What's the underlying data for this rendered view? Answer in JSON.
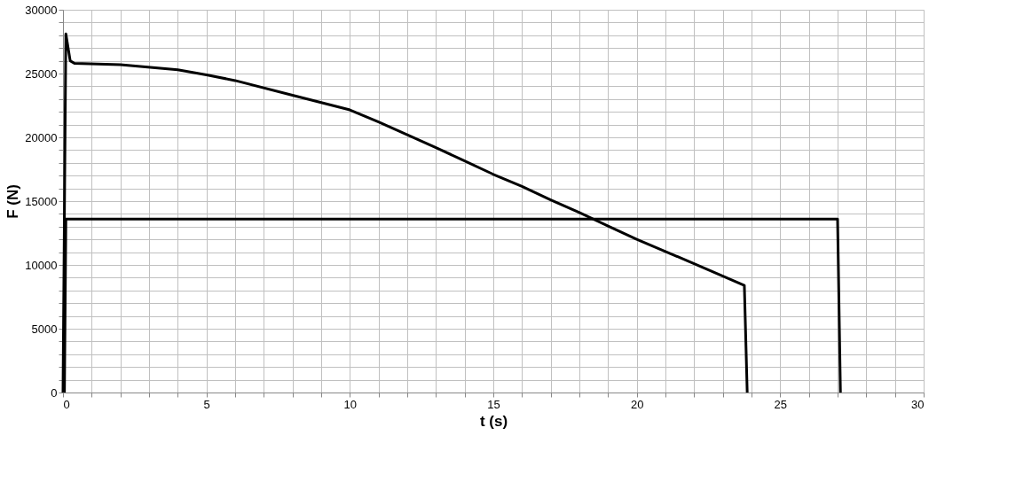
{
  "chart_data": {
    "type": "line",
    "xlabel": "t (s)",
    "ylabel": "F (N)",
    "xlim": [
      0,
      30
    ],
    "ylim": [
      0,
      30000
    ],
    "xticks": [
      0,
      {
        "value": 1,
        "label": null
      },
      {
        "value": 2,
        "label": null
      },
      {
        "value": 3,
        "label": null
      },
      {
        "value": 4,
        "label": null
      },
      5,
      {
        "value": 6,
        "label": null
      },
      {
        "value": 7,
        "label": null
      },
      {
        "value": 8,
        "label": null
      },
      {
        "value": 9,
        "label": null
      },
      10,
      {
        "value": 11,
        "label": null
      },
      {
        "value": 12,
        "label": null
      },
      {
        "value": 13,
        "label": null
      },
      {
        "value": 14,
        "label": null
      },
      15,
      {
        "value": 16,
        "label": null
      },
      {
        "value": 17,
        "label": null
      },
      {
        "value": 18,
        "label": null
      },
      {
        "value": 19,
        "label": null
      },
      20,
      {
        "value": 21,
        "label": null
      },
      {
        "value": 22,
        "label": null
      },
      {
        "value": 23,
        "label": null
      },
      {
        "value": 24,
        "label": null
      },
      25,
      {
        "value": 26,
        "label": null
      },
      {
        "value": 27,
        "label": null
      },
      {
        "value": 28,
        "label": null
      },
      {
        "value": 29,
        "label": null
      },
      30
    ],
    "yticks": [
      0,
      {
        "value": 1000,
        "label": null
      },
      {
        "value": 2000,
        "label": null
      },
      {
        "value": 3000,
        "label": null
      },
      {
        "value": 4000,
        "label": null
      },
      5000,
      {
        "value": 6000,
        "label": null
      },
      {
        "value": 7000,
        "label": null
      },
      {
        "value": 8000,
        "label": null
      },
      {
        "value": 9000,
        "label": null
      },
      10000,
      {
        "value": 11000,
        "label": null
      },
      {
        "value": 12000,
        "label": null
      },
      {
        "value": 13000,
        "label": null
      },
      {
        "value": 14000,
        "label": null
      },
      15000,
      {
        "value": 16000,
        "label": null
      },
      {
        "value": 17000,
        "label": null
      },
      {
        "value": 18000,
        "label": null
      },
      {
        "value": 19000,
        "label": null
      },
      20000,
      {
        "value": 21000,
        "label": null
      },
      {
        "value": 22000,
        "label": null
      },
      {
        "value": 23000,
        "label": null
      },
      {
        "value": 24000,
        "label": null
      },
      25000,
      {
        "value": 26000,
        "label": null
      },
      {
        "value": 27000,
        "label": null
      },
      {
        "value": 28000,
        "label": null
      },
      {
        "value": 29000,
        "label": null
      },
      30000
    ],
    "grid": true,
    "legend": false,
    "marker": "none",
    "line_style": "solid",
    "series": [
      {
        "color": "#000000",
        "x": [
          0,
          0.1,
          0.25,
          0.4,
          2,
          4,
          5,
          6,
          8,
          10,
          11,
          12,
          13,
          14,
          15,
          16,
          17,
          18,
          19,
          20,
          22,
          23.75,
          23.85
        ],
        "values": [
          0,
          28100,
          26000,
          25800,
          25700,
          25300,
          24900,
          24450,
          23300,
          22150,
          21200,
          20200,
          19200,
          18150,
          17100,
          16150,
          15100,
          14100,
          13050,
          12000,
          10100,
          8400,
          0
        ]
      },
      {
        "color": "#000000",
        "x": [
          0.05,
          0.1,
          27,
          27.1
        ],
        "values": [
          0,
          13600,
          13600,
          0
        ]
      }
    ]
  }
}
